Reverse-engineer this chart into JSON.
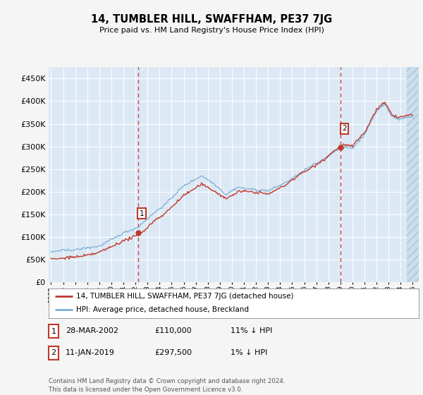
{
  "title": "14, TUMBLER HILL, SWAFFHAM, PE37 7JG",
  "subtitle": "Price paid vs. HM Land Registry's House Price Index (HPI)",
  "bg_color": "#dce9f5",
  "fig_bg_color": "#f5f5f5",
  "grid_color": "#ffffff",
  "hpi_color": "#7bafd4",
  "price_color": "#c0392b",
  "marker1_x": 2002.23,
  "marker1_y": 110000,
  "marker2_x": 2019.03,
  "marker2_y": 297500,
  "annotation1": [
    "1",
    "28-MAR-2002",
    "£110,000",
    "11% ↓ HPI"
  ],
  "annotation2": [
    "2",
    "11-JAN-2019",
    "£297,500",
    "1% ↓ HPI"
  ],
  "legend_line1": "14, TUMBLER HILL, SWAFFHAM, PE37 7JG (detached house)",
  "legend_line2": "HPI: Average price, detached house, Breckland",
  "footnote": "Contains HM Land Registry data © Crown copyright and database right 2024.\nThis data is licensed under the Open Government Licence v3.0.",
  "xlim_left": 1994.8,
  "xlim_right": 2025.5,
  "ylim_bottom": 0,
  "ylim_top": 475000,
  "yticks": [
    0,
    50000,
    100000,
    150000,
    200000,
    250000,
    300000,
    350000,
    400000,
    450000
  ],
  "xticks": [
    1995,
    1996,
    1997,
    1998,
    1999,
    2000,
    2001,
    2002,
    2003,
    2004,
    2005,
    2006,
    2007,
    2008,
    2009,
    2010,
    2011,
    2012,
    2013,
    2014,
    2015,
    2016,
    2017,
    2018,
    2019,
    2020,
    2021,
    2022,
    2023,
    2024,
    2025
  ],
  "hatch_start": 2024.5
}
